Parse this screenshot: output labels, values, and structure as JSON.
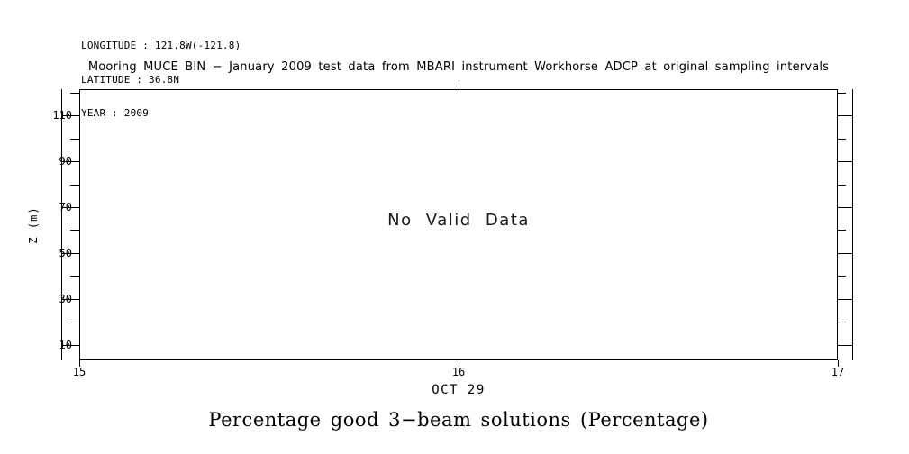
{
  "header": {
    "longitude": "LONGITUDE : 121.8W(-121.8)",
    "latitude": "LATITUDE : 36.8N",
    "year": "YEAR : 2009"
  },
  "title": "Mooring MUCE BIN − January 2009 test data from MBARI instrument Workhorse ADCP at original sampling intervals",
  "plot": {
    "no_data_text": "No Valid Data",
    "y_axis_label": "Z (m)",
    "x_axis_label": "OCT 29"
  },
  "caption": "Percentage good 3−beam solutions (Percentage)",
  "chart_data": {
    "type": "heatmap",
    "title": "Mooring MUCE BIN − January 2009 test data from MBARI instrument Workhorse ADCP at original sampling intervals",
    "xlabel": "OCT 29",
    "ylabel": "Z (m)",
    "xlim": [
      15,
      17
    ],
    "x_ticks": [
      15,
      16,
      17
    ],
    "x_tick_labels": [
      "15",
      "16",
      "17"
    ],
    "ylim": [
      3.3,
      121.4
    ],
    "y_major_ticks": [
      110,
      90,
      70,
      50,
      30,
      10
    ],
    "y_minor_ticks": [
      120,
      100,
      80,
      60,
      40,
      20
    ],
    "grid": false,
    "legend": false,
    "values": [],
    "annotation": "No Valid Data",
    "location": {
      "longitude": "121.8W(-121.8)",
      "latitude": "36.8N",
      "year": "2009"
    }
  }
}
